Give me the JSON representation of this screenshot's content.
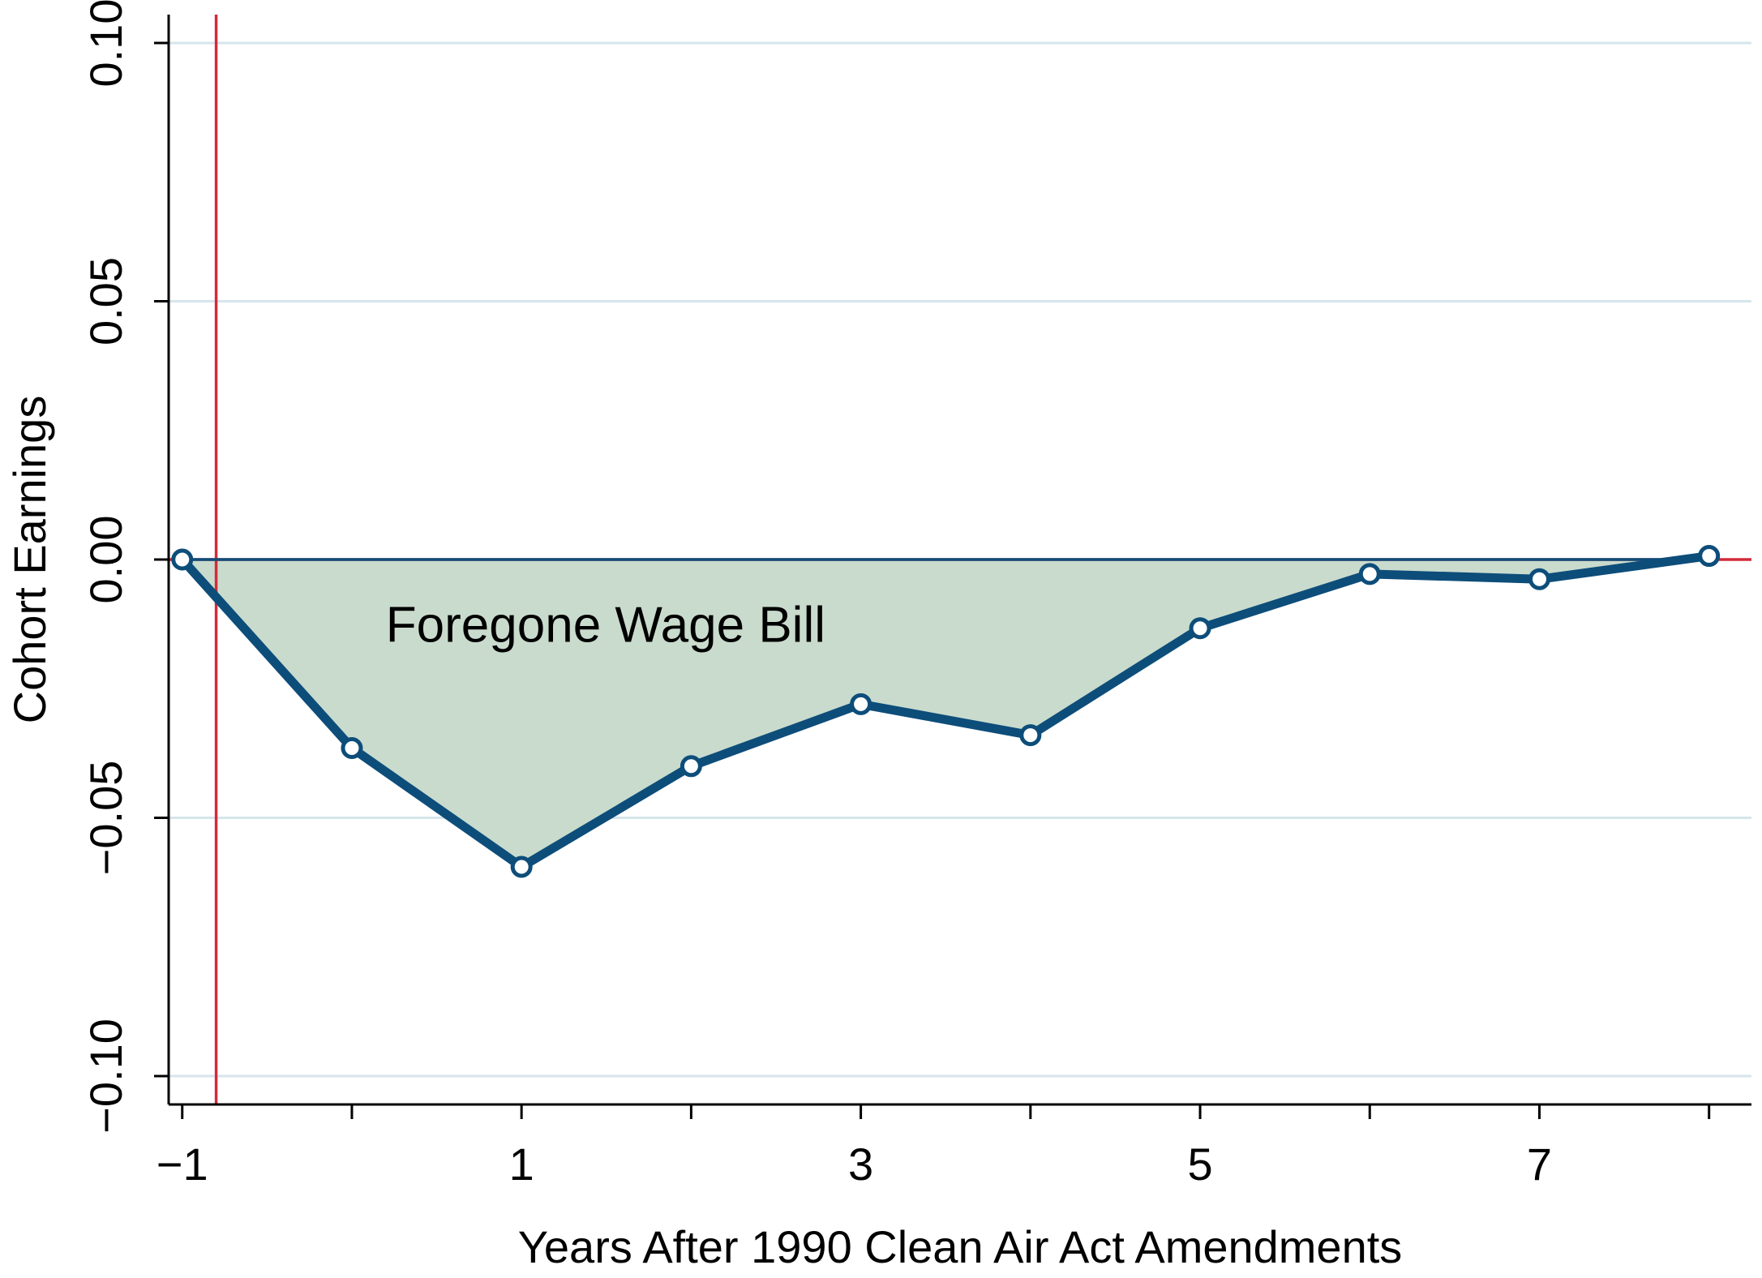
{
  "chart_data": {
    "type": "area",
    "title": "",
    "xlabel": "Years After 1990 Clean Air Act Amendments",
    "ylabel": "Cohort Earnings",
    "x": [
      -1,
      0,
      1,
      2,
      3,
      4,
      5,
      6,
      7,
      8
    ],
    "series": [
      {
        "values": [
          0.0,
          -0.0365,
          -0.0595,
          -0.04,
          -0.028,
          -0.034,
          -0.0133,
          -0.0028,
          -0.0038,
          0.0007
        ],
        "color": "#0d4d7a"
      }
    ],
    "xlim": [
      -1.08,
      8.25
    ],
    "ylim": [
      -0.1055,
      0.1055
    ],
    "xticks": [
      -1,
      1,
      3,
      5,
      7
    ],
    "xtick_labels": [
      "−1",
      "1",
      "3",
      "5",
      "7"
    ],
    "yticks": [
      0.1,
      0.05,
      0.0,
      -0.05,
      -0.1
    ],
    "ytick_labels": [
      "0.10",
      "0.05",
      "0.00",
      "−0.05",
      "−0.10"
    ],
    "grid": true,
    "fill_between_zero_and_series": true,
    "fill_color": "#c9dbcd",
    "reference_lines": [
      {
        "orientation": "vertical",
        "x": -0.8,
        "color": "#d22b3a"
      },
      {
        "orientation": "horizontal",
        "y": 0.0,
        "color": "#d22b3a"
      }
    ],
    "annotations": [
      {
        "text": "Foregone Wage Bill",
        "x": 0.2,
        "y": -0.0125
      }
    ],
    "colors": {
      "line": "#0d4d7a",
      "fill": "#c9dbcd",
      "grid": "#d6e6ec",
      "reference": "#d22b3a",
      "marker_fill": "#ffffff",
      "axis": "#000000"
    }
  }
}
